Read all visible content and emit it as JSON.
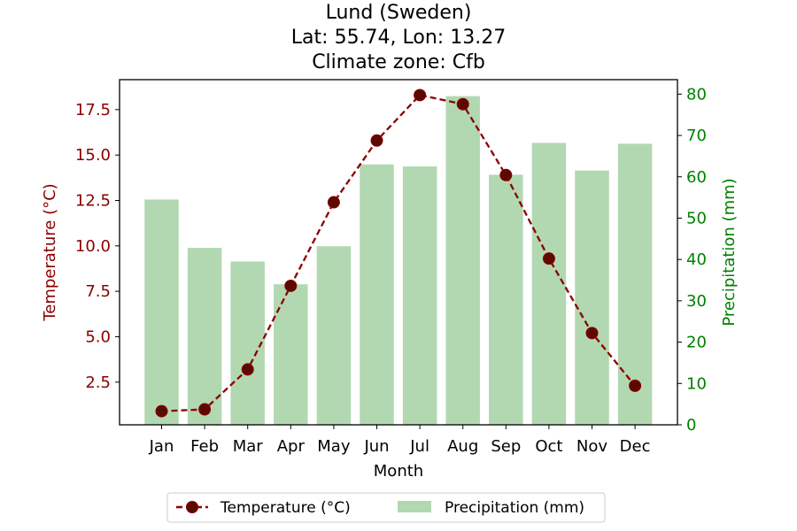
{
  "chart_data": {
    "type": "bar+line",
    "title_lines": [
      "Lund (Sweden)",
      "Lat: 55.74, Lon: 13.27",
      "Climate zone: Cfb"
    ],
    "categories": [
      "Jan",
      "Feb",
      "Mar",
      "Apr",
      "May",
      "Jun",
      "Jul",
      "Aug",
      "Sep",
      "Oct",
      "Nov",
      "Dec"
    ],
    "xlabel": "Month",
    "temperature": {
      "name": "Temperature (°C)",
      "ylabel": "Temperature (°C)",
      "axis": "left",
      "ylim": [
        0.15,
        19.15
      ],
      "ticks": [
        2.5,
        5.0,
        7.5,
        10.0,
        12.5,
        15.0,
        17.5
      ],
      "tick_labels": [
        "2.5",
        "5.0",
        "7.5",
        "10.0",
        "12.5",
        "15.0",
        "17.5"
      ],
      "values": [
        0.9,
        1.0,
        3.2,
        7.8,
        12.4,
        15.8,
        18.3,
        17.8,
        13.9,
        9.3,
        5.2,
        2.3
      ],
      "color": "#8b0000",
      "style": "dashed line with circle markers",
      "marker_color": "#5c0a00"
    },
    "precipitation": {
      "name": "Precipitation (mm)",
      "ylabel": "Precipitation (mm)",
      "axis": "right",
      "ylim": [
        0,
        83.5
      ],
      "ticks": [
        0,
        10,
        20,
        30,
        40,
        50,
        60,
        70,
        80
      ],
      "tick_labels": [
        "0",
        "10",
        "20",
        "30",
        "40",
        "50",
        "60",
        "70",
        "80"
      ],
      "values": [
        54.5,
        42.8,
        39.5,
        34.0,
        43.2,
        63.0,
        62.5,
        79.5,
        60.5,
        68.2,
        61.5,
        68.0
      ],
      "color": "#b2d8b2",
      "style": "bar"
    },
    "grid": false,
    "legend": {
      "placement": "bottom-center",
      "entries": [
        "Temperature (°C)",
        "Precipitation (mm)"
      ]
    }
  }
}
